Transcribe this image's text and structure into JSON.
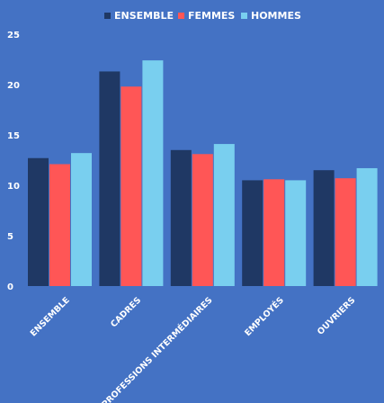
{
  "chart_data": {
    "type": "bar",
    "title": "",
    "xlabel": "",
    "ylabel": "",
    "categories": [
      "ENSEMBLE",
      "CADRES",
      "PROFESSIONS INTERMÉDIAIRES",
      "EMPLOYÉS",
      "OUVRIERS"
    ],
    "series": [
      {
        "name": "ENSEMBLE",
        "color": "#1f3864",
        "values": [
          12.7,
          21.3,
          13.5,
          10.5,
          11.5
        ]
      },
      {
        "name": "FEMMES",
        "color": "#ff5656",
        "values": [
          12.1,
          19.8,
          13.1,
          10.6,
          10.7
        ]
      },
      {
        "name": "HOMMES",
        "color": "#79cfef",
        "values": [
          13.2,
          22.4,
          14.1,
          10.5,
          11.7
        ]
      }
    ],
    "ylim": [
      0,
      25
    ],
    "yticks": [
      0,
      5,
      10,
      15,
      20,
      25
    ],
    "grid": false,
    "legend_position": "top-center"
  }
}
